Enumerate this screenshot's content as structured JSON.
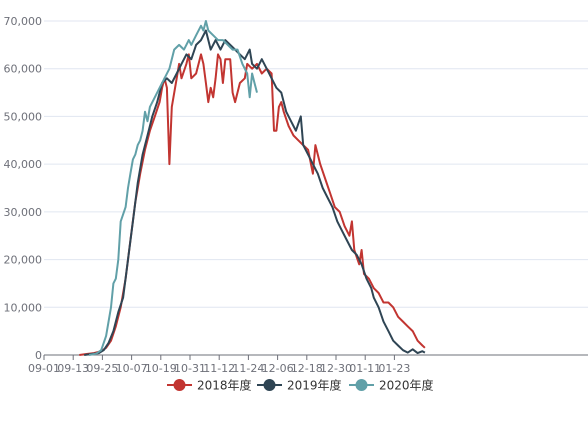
{
  "chart_data": {
    "type": "line",
    "title": "",
    "xlabel": "",
    "ylabel": "",
    "ylim": [
      0,
      70000
    ],
    "y_ticks": [
      0,
      10000,
      20000,
      30000,
      40000,
      50000,
      60000,
      70000
    ],
    "y_tick_labels": [
      "0",
      "10,000",
      "20,000",
      "30,000",
      "40,000",
      "50,000",
      "60,000",
      "70,000"
    ],
    "x_ticks": [
      "09-01",
      "09-13",
      "09-25",
      "10-07",
      "10-19",
      "10-31",
      "11-12",
      "11-24",
      "12-06",
      "12-18",
      "12-30",
      "01-11",
      "01-23"
    ],
    "grid": "horizontal",
    "legend_position": "bottom",
    "series": [
      {
        "name": "2018年度",
        "color": "#c23531",
        "points": [
          [
            "09-11",
            0
          ],
          [
            "09-14",
            200
          ],
          [
            "09-17",
            400
          ],
          [
            "09-20",
            800
          ],
          [
            "09-22",
            1500
          ],
          [
            "09-24",
            3000
          ],
          [
            "09-26",
            6000
          ],
          [
            "09-28",
            10000
          ],
          [
            "09-30",
            16000
          ],
          [
            "10-02",
            24000
          ],
          [
            "10-04",
            32000
          ],
          [
            "10-06",
            38000
          ],
          [
            "10-08",
            43000
          ],
          [
            "10-10",
            47000
          ],
          [
            "10-12",
            50000
          ],
          [
            "10-14",
            53000
          ],
          [
            "10-15",
            56000
          ],
          [
            "10-16",
            58000
          ],
          [
            "10-17",
            56000
          ],
          [
            "10-18",
            40000
          ],
          [
            "10-19",
            52000
          ],
          [
            "10-21",
            58000
          ],
          [
            "10-22",
            61000
          ],
          [
            "10-23",
            58000
          ],
          [
            "10-25",
            61000
          ],
          [
            "10-26",
            63000
          ],
          [
            "10-27",
            58000
          ],
          [
            "10-29",
            59000
          ],
          [
            "10-31",
            63000
          ],
          [
            "11-01",
            61000
          ],
          [
            "11-02",
            57000
          ],
          [
            "11-03",
            53000
          ],
          [
            "11-04",
            56000
          ],
          [
            "11-05",
            54000
          ],
          [
            "11-06",
            58000
          ],
          [
            "11-07",
            63000
          ],
          [
            "11-08",
            62000
          ],
          [
            "11-09",
            57000
          ],
          [
            "11-10",
            62000
          ],
          [
            "11-12",
            62000
          ],
          [
            "11-13",
            55000
          ],
          [
            "11-14",
            53000
          ],
          [
            "11-16",
            57000
          ],
          [
            "11-18",
            58000
          ],
          [
            "11-19",
            61000
          ],
          [
            "11-21",
            60000
          ],
          [
            "11-23",
            61000
          ],
          [
            "11-25",
            59000
          ],
          [
            "11-27",
            60000
          ],
          [
            "11-29",
            59000
          ],
          [
            "11-30",
            47000
          ],
          [
            "12-01",
            47000
          ],
          [
            "12-02",
            52000
          ],
          [
            "12-03",
            53000
          ],
          [
            "12-04",
            51000
          ],
          [
            "12-06",
            48000
          ],
          [
            "12-08",
            46000
          ],
          [
            "12-10",
            45000
          ],
          [
            "12-12",
            44000
          ],
          [
            "12-14",
            43000
          ],
          [
            "12-16",
            38000
          ],
          [
            "12-17",
            44000
          ],
          [
            "12-19",
            40000
          ],
          [
            "12-21",
            37000
          ],
          [
            "12-23",
            34000
          ],
          [
            "12-25",
            31000
          ],
          [
            "12-27",
            30000
          ],
          [
            "12-29",
            27000
          ],
          [
            "12-31",
            25000
          ],
          [
            "01-01",
            28000
          ],
          [
            "01-02",
            22000
          ],
          [
            "01-04",
            19000
          ],
          [
            "01-05",
            22000
          ],
          [
            "01-06",
            17000
          ],
          [
            "01-08",
            16000
          ],
          [
            "01-10",
            14000
          ],
          [
            "01-12",
            13000
          ],
          [
            "01-14",
            11000
          ],
          [
            "01-16",
            11000
          ],
          [
            "01-18",
            10000
          ],
          [
            "01-20",
            8000
          ],
          [
            "01-22",
            7000
          ],
          [
            "01-24",
            6000
          ],
          [
            "01-26",
            5000
          ],
          [
            "01-28",
            3000
          ],
          [
            "01-30",
            2000
          ],
          [
            "01-31",
            1500
          ]
        ]
      },
      {
        "name": "2019年度",
        "color": "#2f4554",
        "points": [
          [
            "09-13",
            0
          ],
          [
            "09-16",
            200
          ],
          [
            "09-19",
            400
          ],
          [
            "09-21",
            1000
          ],
          [
            "09-23",
            2500
          ],
          [
            "09-25",
            5000
          ],
          [
            "09-27",
            9000
          ],
          [
            "09-29",
            12000
          ],
          [
            "10-01",
            20000
          ],
          [
            "10-03",
            28000
          ],
          [
            "10-05",
            36000
          ],
          [
            "10-07",
            42000
          ],
          [
            "10-09",
            46000
          ],
          [
            "10-11",
            50000
          ],
          [
            "10-13",
            53000
          ],
          [
            "10-15",
            57000
          ],
          [
            "10-17",
            58000
          ],
          [
            "10-19",
            57000
          ],
          [
            "10-21",
            59000
          ],
          [
            "10-23",
            61000
          ],
          [
            "10-25",
            63000
          ],
          [
            "10-27",
            62000
          ],
          [
            "10-29",
            65000
          ],
          [
            "10-31",
            66000
          ],
          [
            "11-02",
            68000
          ],
          [
            "11-04",
            64000
          ],
          [
            "11-06",
            66000
          ],
          [
            "11-08",
            64000
          ],
          [
            "11-10",
            66000
          ],
          [
            "11-12",
            65000
          ],
          [
            "11-14",
            64000
          ],
          [
            "11-16",
            63000
          ],
          [
            "11-18",
            62000
          ],
          [
            "11-20",
            64000
          ],
          [
            "11-21",
            61000
          ],
          [
            "11-23",
            60000
          ],
          [
            "11-25",
            62000
          ],
          [
            "11-27",
            60000
          ],
          [
            "11-29",
            58000
          ],
          [
            "12-01",
            56000
          ],
          [
            "12-03",
            55000
          ],
          [
            "12-05",
            51000
          ],
          [
            "12-07",
            49000
          ],
          [
            "12-09",
            47000
          ],
          [
            "12-11",
            50000
          ],
          [
            "12-12",
            44000
          ],
          [
            "12-14",
            42000
          ],
          [
            "12-16",
            40000
          ],
          [
            "12-18",
            38000
          ],
          [
            "12-20",
            35000
          ],
          [
            "12-22",
            33000
          ],
          [
            "12-24",
            31000
          ],
          [
            "12-26",
            28000
          ],
          [
            "12-28",
            26000
          ],
          [
            "12-30",
            24000
          ],
          [
            "01-01",
            22000
          ],
          [
            "01-03",
            21000
          ],
          [
            "01-05",
            19000
          ],
          [
            "01-07",
            16000
          ],
          [
            "01-09",
            14000
          ],
          [
            "01-10",
            12000
          ],
          [
            "01-12",
            10000
          ],
          [
            "01-14",
            7000
          ],
          [
            "01-16",
            5000
          ],
          [
            "01-18",
            3000
          ],
          [
            "01-20",
            2000
          ],
          [
            "01-22",
            1000
          ],
          [
            "01-24",
            500
          ],
          [
            "01-26",
            1200
          ],
          [
            "01-28",
            400
          ],
          [
            "01-30",
            800
          ],
          [
            "01-31",
            500
          ]
        ]
      },
      {
        "name": "2020年度",
        "color": "#61a0a8",
        "points": [
          [
            "09-15",
            0
          ],
          [
            "09-18",
            300
          ],
          [
            "09-20",
            1000
          ],
          [
            "09-22",
            4000
          ],
          [
            "09-24",
            10000
          ],
          [
            "09-25",
            15000
          ],
          [
            "09-26",
            16000
          ],
          [
            "09-27",
            20000
          ],
          [
            "09-28",
            28000
          ],
          [
            "09-30",
            31000
          ],
          [
            "10-01",
            35000
          ],
          [
            "10-02",
            38000
          ],
          [
            "10-03",
            41000
          ],
          [
            "10-04",
            42000
          ],
          [
            "10-05",
            44000
          ],
          [
            "10-06",
            45000
          ],
          [
            "10-07",
            47000
          ],
          [
            "10-08",
            51000
          ],
          [
            "10-09",
            49000
          ],
          [
            "10-10",
            52000
          ],
          [
            "10-12",
            54000
          ],
          [
            "10-14",
            56000
          ],
          [
            "10-16",
            58000
          ],
          [
            "10-18",
            60000
          ],
          [
            "10-20",
            64000
          ],
          [
            "10-22",
            65000
          ],
          [
            "10-24",
            64000
          ],
          [
            "10-26",
            66000
          ],
          [
            "10-27",
            65000
          ],
          [
            "10-29",
            67000
          ],
          [
            "10-31",
            69000
          ],
          [
            "11-01",
            68000
          ],
          [
            "11-02",
            70000
          ],
          [
            "11-03",
            68000
          ],
          [
            "11-05",
            67000
          ],
          [
            "11-07",
            66000
          ],
          [
            "11-09",
            66000
          ],
          [
            "11-11",
            65000
          ],
          [
            "11-13",
            64000
          ],
          [
            "11-15",
            64000
          ],
          [
            "11-17",
            61000
          ],
          [
            "11-19",
            59000
          ],
          [
            "11-20",
            54000
          ],
          [
            "11-21",
            59000
          ],
          [
            "11-22",
            57000
          ],
          [
            "11-23",
            55000
          ]
        ]
      }
    ]
  }
}
